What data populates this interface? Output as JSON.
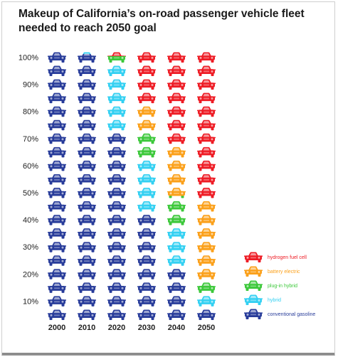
{
  "chart_data": {
    "type": "pictograph",
    "title": "Makeup of California's on-road passenger vehicle fleet needed to reach 2050 goal",
    "title_lines": [
      "Makeup of California’s on-road passenger vehicle fleet",
      "needed to reach 2050 goal"
    ],
    "categories": [
      "2000",
      "2010",
      "2020",
      "2030",
      "2040",
      "2050"
    ],
    "y_ticks": [
      "10%",
      "20%",
      "30%",
      "40%",
      "50%",
      "60%",
      "70%",
      "80%",
      "90%",
      "100%"
    ],
    "ylim": [
      0,
      100
    ],
    "units_per_column": 20,
    "series": [
      {
        "name": "conventional gasoline",
        "color": "#283c9a",
        "values": [
          100,
          99,
          70,
          40,
          20,
          5
        ]
      },
      {
        "name": "hybrid",
        "color": "#33d0f2",
        "values": [
          0,
          1,
          25,
          20,
          15,
          5
        ]
      },
      {
        "name": "plug-in hybrid",
        "color": "#3cc83a",
        "values": [
          0,
          0,
          3,
          10,
          11,
          5
        ]
      },
      {
        "name": "battery electric",
        "color": "#fba01a",
        "values": [
          0,
          0,
          0,
          10,
          19,
          30
        ]
      },
      {
        "name": "hydrogen fuel cell",
        "color": "#ee1c25",
        "values": [
          0,
          0,
          2,
          20,
          35,
          55
        ]
      }
    ],
    "legend": {
      "placement": "right",
      "order": [
        "hydrogen fuel cell",
        "battery electric",
        "plug-in hybrid",
        "hybrid",
        "conventional gasoline"
      ]
    }
  }
}
